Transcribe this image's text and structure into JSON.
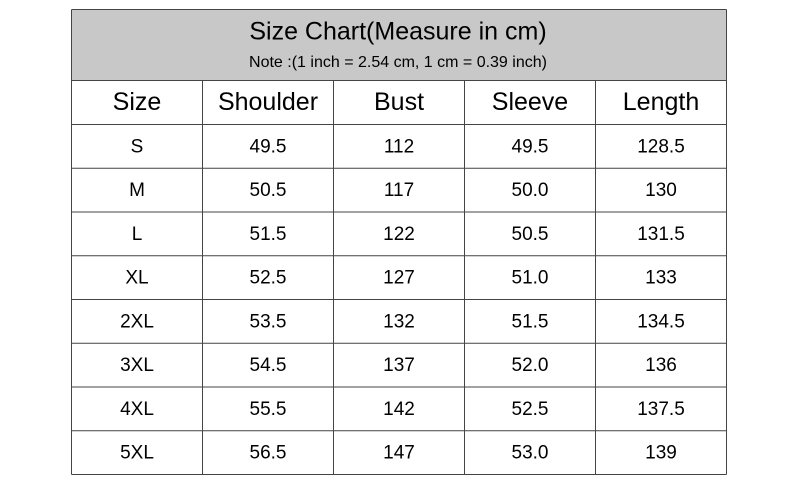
{
  "header": {
    "title": "Size Chart(Measure in cm)",
    "note": "Note :(1 inch = 2.54 cm, 1 cm = 0.39 inch)"
  },
  "table": {
    "columns": [
      "Size",
      "Shoulder",
      "Bust",
      "Sleeve",
      "Length"
    ],
    "rows": [
      [
        "S",
        "49.5",
        "112",
        "49.5",
        "128.5"
      ],
      [
        "M",
        "50.5",
        "117",
        "50.0",
        "130"
      ],
      [
        "L",
        "51.5",
        "122",
        "50.5",
        "131.5"
      ],
      [
        "XL",
        "52.5",
        "127",
        "51.0",
        "133"
      ],
      [
        "2XL",
        "53.5",
        "132",
        "51.5",
        "134.5"
      ],
      [
        "3XL",
        "54.5",
        "137",
        "52.0",
        "136"
      ],
      [
        "4XL",
        "55.5",
        "142",
        "52.5",
        "137.5"
      ],
      [
        "5XL",
        "56.5",
        "147",
        "53.0",
        "139"
      ]
    ]
  }
}
